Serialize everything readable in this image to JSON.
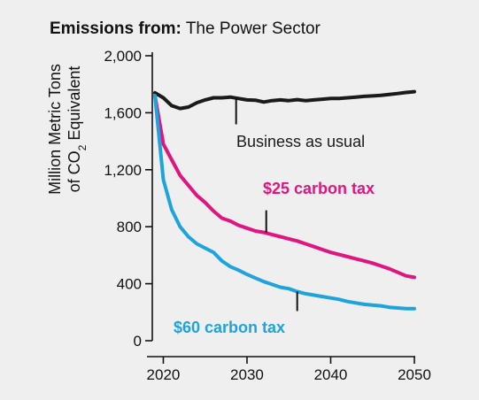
{
  "header": {
    "title_bold": "Emissions from:",
    "title_rest": "The Power Sector"
  },
  "chart_data": {
    "type": "line",
    "ylabel_line1": "Million Metric Tons",
    "ylabel_line2_pre": "of CO",
    "ylabel_line2_sub": "2",
    "ylabel_line2_post": " Equivalent",
    "ylim": [
      0,
      2000
    ],
    "xlim": [
      2019,
      2050
    ],
    "yticks": [
      0,
      400,
      800,
      1200,
      1600,
      2000
    ],
    "ytick_labels": [
      "0",
      "400",
      "800",
      "1,200",
      "1,600",
      "2,000"
    ],
    "xticks": [
      2020,
      2030,
      2040,
      2050
    ],
    "xtick_labels": [
      "2020",
      "2030",
      "2040",
      "2050"
    ],
    "grid": false,
    "series": [
      {
        "name": "Business as usual",
        "color": "#1a1a1a",
        "x": [
          2019,
          2020,
          2021,
          2022,
          2023,
          2024,
          2025,
          2026,
          2027,
          2028,
          2029,
          2030,
          2031,
          2032,
          2033,
          2034,
          2035,
          2036,
          2037,
          2038,
          2039,
          2040,
          2041,
          2042,
          2043,
          2044,
          2045,
          2046,
          2047,
          2048,
          2049,
          2050
        ],
        "values": [
          1740,
          1705,
          1650,
          1630,
          1640,
          1670,
          1690,
          1705,
          1705,
          1710,
          1700,
          1690,
          1688,
          1675,
          1685,
          1690,
          1685,
          1692,
          1685,
          1690,
          1695,
          1700,
          1700,
          1705,
          1710,
          1715,
          1718,
          1722,
          1728,
          1735,
          1742,
          1748
        ]
      },
      {
        "name": "$25 carbon tax",
        "color": "#e0157f",
        "x": [
          2019,
          2020,
          2021,
          2022,
          2023,
          2024,
          2025,
          2026,
          2027,
          2028,
          2029,
          2030,
          2031,
          2032,
          2033,
          2034,
          2035,
          2036,
          2037,
          2038,
          2039,
          2040,
          2041,
          2042,
          2043,
          2044,
          2045,
          2046,
          2047,
          2048,
          2049,
          2050
        ],
        "values": [
          1720,
          1380,
          1270,
          1160,
          1090,
          1020,
          970,
          910,
          860,
          840,
          810,
          790,
          770,
          760,
          745,
          730,
          715,
          700,
          680,
          660,
          640,
          620,
          605,
          590,
          575,
          560,
          545,
          525,
          505,
          480,
          455,
          445
        ]
      },
      {
        "name": "$60 carbon tax",
        "color": "#1fa3dc",
        "x": [
          2019,
          2020,
          2021,
          2022,
          2023,
          2024,
          2025,
          2026,
          2027,
          2028,
          2029,
          2030,
          2031,
          2032,
          2033,
          2034,
          2035,
          2036,
          2037,
          2038,
          2039,
          2040,
          2041,
          2042,
          2043,
          2044,
          2045,
          2046,
          2047,
          2048,
          2049,
          2050
        ],
        "values": [
          1720,
          1130,
          920,
          800,
          730,
          680,
          650,
          620,
          560,
          520,
          495,
          465,
          440,
          415,
          395,
          375,
          365,
          345,
          330,
          320,
          310,
          300,
          290,
          275,
          265,
          255,
          250,
          245,
          235,
          230,
          225,
          225
        ]
      }
    ],
    "annotations": [
      {
        "text": "Business as usual",
        "color": "#1a1a1a",
        "bold": false,
        "pointer_x": 2028.7,
        "pointer_y": 1705
      },
      {
        "text": "$25 carbon tax",
        "color": "#e0157f",
        "bold": true,
        "pointer_x": 2032.3,
        "pointer_y": 760
      },
      {
        "text": "$60 carbon tax",
        "color": "#1fa3dc",
        "bold": true,
        "pointer_x": 2036,
        "pointer_y": 345
      }
    ]
  }
}
